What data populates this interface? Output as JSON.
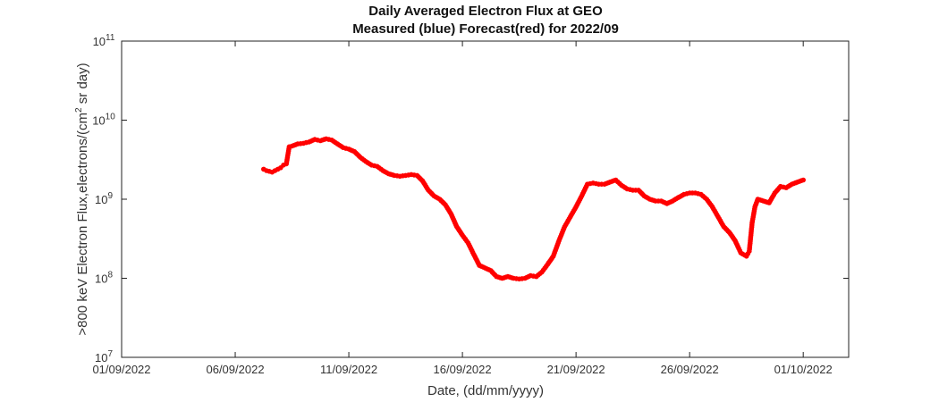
{
  "chart_data": {
    "type": "scatter",
    "title": "Daily Averaged Electron Flux at GEO",
    "subtitle": "Measured (blue) Forecast(red) for 2022/09",
    "xlabel": "Date, (dd/mm/yyyy)",
    "ylabel_pre": ">800 keV Electron Flux,electrons/(cm",
    "ylabel_sup": "2",
    "ylabel_post": " sr day)",
    "x_tick_labels": [
      "01/09/2022",
      "06/09/2022",
      "11/09/2022",
      "16/09/2022",
      "21/09/2022",
      "26/09/2022",
      "01/10/2022"
    ],
    "y_tick_exponents": [
      "7",
      "8",
      "9",
      "10",
      "11"
    ],
    "y_tick_base": "10",
    "xlim": [
      "2022-09-01",
      "2022-10-03"
    ],
    "ylim": [
      10000000.0,
      100000000000.0
    ],
    "y_scale": "log",
    "grid": false,
    "series": [
      {
        "color": "#ff0000",
        "x": [
          "2022-09-07T06:00",
          "2022-09-07T09:00",
          "2022-09-07T12:00",
          "2022-09-07T15:00",
          "2022-09-07T18:00",
          "2022-09-07T21:00",
          "2022-09-08T00:00",
          "2022-09-08T03:00",
          "2022-09-08T06:00",
          "2022-09-08T09:00",
          "2022-09-08T12:00",
          "2022-09-08T18:00",
          "2022-09-09T00:00",
          "2022-09-09T06:00",
          "2022-09-09T12:00",
          "2022-09-09T18:00",
          "2022-09-10T00:00",
          "2022-09-10T06:00",
          "2022-09-10T12:00",
          "2022-09-10T18:00",
          "2022-09-11T00:00",
          "2022-09-11T06:00",
          "2022-09-11T12:00",
          "2022-09-11T18:00",
          "2022-09-12T00:00",
          "2022-09-12T06:00",
          "2022-09-12T12:00",
          "2022-09-12T18:00",
          "2022-09-13T00:00",
          "2022-09-13T06:00",
          "2022-09-13T12:00",
          "2022-09-13T18:00",
          "2022-09-14T00:00",
          "2022-09-14T06:00",
          "2022-09-14T12:00",
          "2022-09-14T18:00",
          "2022-09-15T00:00",
          "2022-09-15T06:00",
          "2022-09-15T12:00",
          "2022-09-15T18:00",
          "2022-09-16T00:00",
          "2022-09-16T06:00",
          "2022-09-16T12:00",
          "2022-09-16T18:00",
          "2022-09-17T00:00",
          "2022-09-17T06:00",
          "2022-09-17T12:00",
          "2022-09-17T18:00",
          "2022-09-18T00:00",
          "2022-09-18T06:00",
          "2022-09-18T12:00",
          "2022-09-18T18:00",
          "2022-09-19T00:00",
          "2022-09-19T06:00",
          "2022-09-19T12:00",
          "2022-09-19T18:00",
          "2022-09-20T00:00",
          "2022-09-20T06:00",
          "2022-09-20T12:00",
          "2022-09-20T18:00",
          "2022-09-21T00:00",
          "2022-09-21T06:00",
          "2022-09-21T12:00",
          "2022-09-21T18:00",
          "2022-09-22T00:00",
          "2022-09-22T06:00",
          "2022-09-22T12:00",
          "2022-09-22T18:00",
          "2022-09-23T00:00",
          "2022-09-23T06:00",
          "2022-09-23T12:00",
          "2022-09-23T18:00",
          "2022-09-24T00:00",
          "2022-09-24T06:00",
          "2022-09-24T12:00",
          "2022-09-24T18:00",
          "2022-09-25T00:00",
          "2022-09-25T06:00",
          "2022-09-25T12:00",
          "2022-09-25T18:00",
          "2022-09-26T00:00",
          "2022-09-26T06:00",
          "2022-09-26T12:00",
          "2022-09-26T18:00",
          "2022-09-27T00:00",
          "2022-09-27T06:00",
          "2022-09-27T12:00",
          "2022-09-27T18:00",
          "2022-09-28T00:00",
          "2022-09-28T06:00",
          "2022-09-28T12:00",
          "2022-09-28T15:00",
          "2022-09-28T18:00",
          "2022-09-28T21:00",
          "2022-09-29T00:00",
          "2022-09-29T06:00",
          "2022-09-29T12:00",
          "2022-09-29T18:00",
          "2022-09-30T00:00",
          "2022-09-30T06:00",
          "2022-09-30T12:00",
          "2022-09-30T18:00",
          "2022-10-01T00:00"
        ],
        "y": [
          2400000000.0,
          2300000000.0,
          2250000000.0,
          2200000000.0,
          2300000000.0,
          2400000000.0,
          2500000000.0,
          2700000000.0,
          2800000000.0,
          4600000000.0,
          4700000000.0,
          5000000000.0,
          5100000000.0,
          5300000000.0,
          5700000000.0,
          5500000000.0,
          5800000000.0,
          5600000000.0,
          5000000000.0,
          4500000000.0,
          4300000000.0,
          4000000000.0,
          3400000000.0,
          3000000000.0,
          2700000000.0,
          2600000000.0,
          2300000000.0,
          2100000000.0,
          2000000000.0,
          1950000000.0,
          2000000000.0,
          2050000000.0,
          2000000000.0,
          1700000000.0,
          1300000000.0,
          1100000000.0,
          1000000000.0,
          850000000.0,
          650000000.0,
          450000000.0,
          350000000.0,
          280000000.0,
          200000000.0,
          145000000.0,
          135000000.0,
          125000000.0,
          105000000.0,
          100000000.0,
          105000000.0,
          100000000.0,
          98000000.0,
          100000000.0,
          108000000.0,
          105000000.0,
          120000000.0,
          150000000.0,
          190000000.0,
          300000000.0,
          450000000.0,
          600000000.0,
          800000000.0,
          1100000000.0,
          1550000000.0,
          1600000000.0,
          1550000000.0,
          1550000000.0,
          1650000000.0,
          1750000000.0,
          1500000000.0,
          1350000000.0,
          1300000000.0,
          1300000000.0,
          1100000000.0,
          1000000000.0,
          950000000.0,
          950000000.0,
          880000000.0,
          950000000.0,
          1050000000.0,
          1150000000.0,
          1200000000.0,
          1200000000.0,
          1150000000.0,
          1000000000.0,
          800000000.0,
          600000000.0,
          450000000.0,
          380000000.0,
          300000000.0,
          210000000.0,
          190000000.0,
          220000000.0,
          500000000.0,
          800000000.0,
          1000000000.0,
          950000000.0,
          900000000.0,
          1200000000.0,
          1450000000.0,
          1400000000.0,
          1550000000.0,
          1650000000.0,
          1750000000.0
        ]
      }
    ]
  }
}
